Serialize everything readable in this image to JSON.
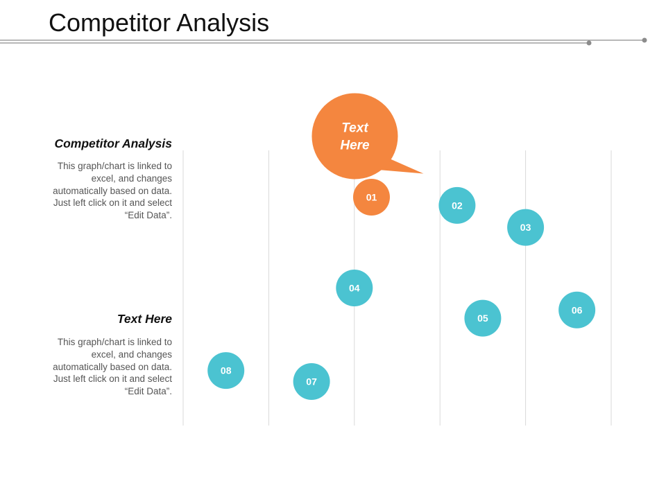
{
  "title": "Competitor Analysis",
  "colors": {
    "accent_orange": "#F4863F",
    "marker_teal": "#4BC3D1",
    "gridline": "#D9D9D9",
    "rule": "#8C8C8C",
    "heading_text": "#111111",
    "body_text": "#555555"
  },
  "sidebar": {
    "blocks": [
      {
        "heading": "Competitor Analysis",
        "body": "This graph/chart is linked to excel, and changes automatically based on data. Just left click on it and select “Edit Data”."
      },
      {
        "heading": "Text Here",
        "body": "This graph/chart is linked to excel, and changes automatically based on data. Just left click on it and select “Edit Data”."
      }
    ]
  },
  "chart_data": {
    "type": "scatter",
    "title": "",
    "xlabel": "",
    "ylabel": "",
    "xlim": [
      0,
      5
    ],
    "ylim": [
      0,
      10
    ],
    "grid": "vertical lines at each x unit",
    "callout": {
      "text": "Text Here",
      "color": "#F4863F",
      "points_to": "01"
    },
    "points": [
      {
        "label": "01",
        "x": 2.2,
        "y": 8.3,
        "highlight": true
      },
      {
        "label": "02",
        "x": 3.2,
        "y": 8.0,
        "highlight": false
      },
      {
        "label": "03",
        "x": 4.0,
        "y": 7.2,
        "highlight": false
      },
      {
        "label": "04",
        "x": 2.0,
        "y": 5.0,
        "highlight": false
      },
      {
        "label": "05",
        "x": 3.5,
        "y": 3.9,
        "highlight": false
      },
      {
        "label": "06",
        "x": 4.6,
        "y": 4.2,
        "highlight": false
      },
      {
        "label": "07",
        "x": 1.5,
        "y": 1.6,
        "highlight": false
      },
      {
        "label": "08",
        "x": 0.5,
        "y": 2.0,
        "highlight": false
      }
    ]
  }
}
